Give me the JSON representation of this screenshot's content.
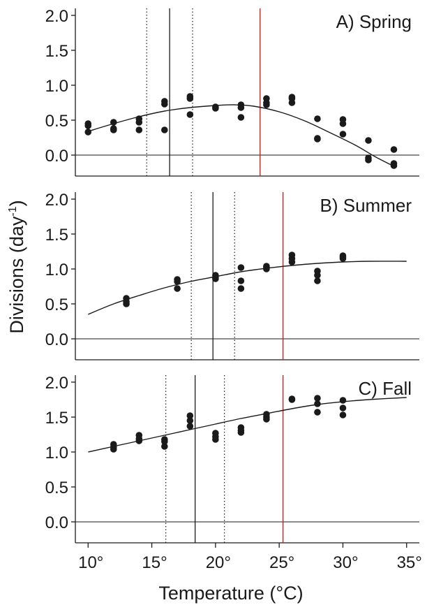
{
  "chart_data": {
    "type": "scatter",
    "xlabel": "Temperature (°C)",
    "ylabel": {
      "main": "Divisions (day",
      "sup": "-1",
      "close": ")"
    },
    "x_ticks": [
      {
        "value": 10,
        "label": "10°"
      },
      {
        "value": 15,
        "label": "15°"
      },
      {
        "value": 20,
        "label": "20°"
      },
      {
        "value": 25,
        "label": "25°"
      },
      {
        "value": 30,
        "label": "30°"
      },
      {
        "value": 35,
        "label": "35°"
      }
    ],
    "xlim": [
      9,
      36
    ],
    "colors": {
      "ink": "#1a1a1a",
      "reference_line": "#cc2222"
    },
    "panels": [
      {
        "name": "spring",
        "title": "A) Spring",
        "ylim": [
          -0.3,
          2.1
        ],
        "y_ticks": [
          {
            "value": 0.0,
            "label": "0.0"
          },
          {
            "value": 0.5,
            "label": "0.5"
          },
          {
            "value": 1.0,
            "label": "1.0"
          },
          {
            "value": 1.5,
            "label": "1.5"
          },
          {
            "value": 2.0,
            "label": "2.0"
          }
        ],
        "points": [
          [
            10,
            0.45
          ],
          [
            10,
            0.42
          ],
          [
            10,
            0.33
          ],
          [
            12,
            0.47
          ],
          [
            12,
            0.38
          ],
          [
            12,
            0.36
          ],
          [
            14,
            0.52
          ],
          [
            14,
            0.47
          ],
          [
            14,
            0.36
          ],
          [
            16,
            0.77
          ],
          [
            16,
            0.73
          ],
          [
            16,
            0.36
          ],
          [
            18,
            0.84
          ],
          [
            18,
            0.81
          ],
          [
            18,
            0.58
          ],
          [
            20,
            0.69
          ],
          [
            20,
            0.67
          ],
          [
            22,
            0.72
          ],
          [
            22,
            0.68
          ],
          [
            22,
            0.54
          ],
          [
            24,
            0.81
          ],
          [
            24,
            0.75
          ],
          [
            24,
            0.72
          ],
          [
            26,
            0.83
          ],
          [
            26,
            0.81
          ],
          [
            26,
            0.75
          ],
          [
            28,
            0.52
          ],
          [
            28,
            0.24
          ],
          [
            28,
            0.23
          ],
          [
            30,
            0.51
          ],
          [
            30,
            0.45
          ],
          [
            30,
            0.3
          ],
          [
            32,
            0.21
          ],
          [
            32,
            -0.04
          ],
          [
            32,
            -0.07
          ],
          [
            34,
            0.08
          ],
          [
            34,
            -0.12
          ],
          [
            34,
            -0.15
          ]
        ],
        "curve": [
          [
            10,
            0.34
          ],
          [
            12,
            0.45
          ],
          [
            14,
            0.55
          ],
          [
            16,
            0.63
          ],
          [
            18,
            0.68
          ],
          [
            20,
            0.71
          ],
          [
            21.5,
            0.72
          ],
          [
            23,
            0.7
          ],
          [
            25,
            0.62
          ],
          [
            27,
            0.49
          ],
          [
            29,
            0.32
          ],
          [
            31,
            0.14
          ],
          [
            32.5,
            -0.02
          ],
          [
            34,
            -0.16
          ]
        ],
        "solid_line_x": 16.4,
        "dotted_lines_x": [
          14.6,
          18.2
        ],
        "red_line_x": 23.5
      },
      {
        "name": "summer",
        "title": "B) Summer",
        "ylim": [
          -0.3,
          2.1
        ],
        "y_ticks": [
          {
            "value": 0.0,
            "label": "0.0"
          },
          {
            "value": 0.5,
            "label": "0.5"
          },
          {
            "value": 1.0,
            "label": "1.0"
          },
          {
            "value": 1.5,
            "label": "1.5"
          },
          {
            "value": 2.0,
            "label": "2.0"
          }
        ],
        "points": [
          [
            13,
            0.58
          ],
          [
            13,
            0.53
          ],
          [
            13,
            0.5
          ],
          [
            17,
            0.85
          ],
          [
            17,
            0.82
          ],
          [
            17,
            0.72
          ],
          [
            20,
            0.91
          ],
          [
            20,
            0.88
          ],
          [
            20,
            0.86
          ],
          [
            22,
            1.02
          ],
          [
            22,
            0.83
          ],
          [
            22,
            0.72
          ],
          [
            24,
            1.04
          ],
          [
            24,
            1.02
          ],
          [
            24,
            1.0
          ],
          [
            26,
            1.2
          ],
          [
            26,
            1.15
          ],
          [
            26,
            1.1
          ],
          [
            28,
            0.97
          ],
          [
            28,
            0.91
          ],
          [
            28,
            0.83
          ],
          [
            30,
            1.19
          ],
          [
            30,
            1.17
          ],
          [
            30,
            1.15
          ]
        ],
        "curve": [
          [
            10,
            0.35
          ],
          [
            12,
            0.5
          ],
          [
            14,
            0.62
          ],
          [
            16,
            0.73
          ],
          [
            18,
            0.82
          ],
          [
            20,
            0.89
          ],
          [
            22,
            0.96
          ],
          [
            24,
            1.01
          ],
          [
            26,
            1.05
          ],
          [
            28,
            1.08
          ],
          [
            30,
            1.1
          ],
          [
            32,
            1.11
          ],
          [
            35,
            1.11
          ]
        ],
        "solid_line_x": 19.8,
        "dotted_lines_x": [
          18.1,
          21.5
        ],
        "red_line_x": 25.3
      },
      {
        "name": "fall",
        "title": "C) Fall",
        "ylim": [
          -0.3,
          2.1
        ],
        "y_ticks": [
          {
            "value": 0.0,
            "label": "0.0"
          },
          {
            "value": 0.5,
            "label": "0.5"
          },
          {
            "value": 1.0,
            "label": "1.0"
          },
          {
            "value": 1.5,
            "label": "1.5"
          },
          {
            "value": 2.0,
            "label": "2.0"
          }
        ],
        "points": [
          [
            12,
            1.11
          ],
          [
            12,
            1.07
          ],
          [
            12,
            1.04
          ],
          [
            14,
            1.24
          ],
          [
            14,
            1.19
          ],
          [
            14,
            1.16
          ],
          [
            16,
            1.18
          ],
          [
            16,
            1.15
          ],
          [
            16,
            1.08
          ],
          [
            18,
            1.52
          ],
          [
            18,
            1.45
          ],
          [
            18,
            1.37
          ],
          [
            20,
            1.27
          ],
          [
            20,
            1.22
          ],
          [
            20,
            1.18
          ],
          [
            22,
            1.35
          ],
          [
            22,
            1.31
          ],
          [
            22,
            1.28
          ],
          [
            24,
            1.54
          ],
          [
            24,
            1.5
          ],
          [
            24,
            1.47
          ],
          [
            26,
            1.76
          ],
          [
            26,
            1.75
          ],
          [
            28,
            1.77
          ],
          [
            28,
            1.69
          ],
          [
            28,
            1.57
          ],
          [
            30,
            1.74
          ],
          [
            30,
            1.63
          ],
          [
            30,
            1.53
          ]
        ],
        "curve": [
          [
            10,
            1.0
          ],
          [
            12,
            1.08
          ],
          [
            14,
            1.16
          ],
          [
            16,
            1.24
          ],
          [
            18,
            1.32
          ],
          [
            20,
            1.4
          ],
          [
            22,
            1.48
          ],
          [
            24,
            1.55
          ],
          [
            26,
            1.62
          ],
          [
            28,
            1.68
          ],
          [
            30,
            1.72
          ],
          [
            32,
            1.75
          ],
          [
            35,
            1.78
          ]
        ],
        "solid_line_x": 18.4,
        "dotted_lines_x": [
          16.1,
          20.7
        ],
        "red_line_x": 25.3
      }
    ]
  }
}
